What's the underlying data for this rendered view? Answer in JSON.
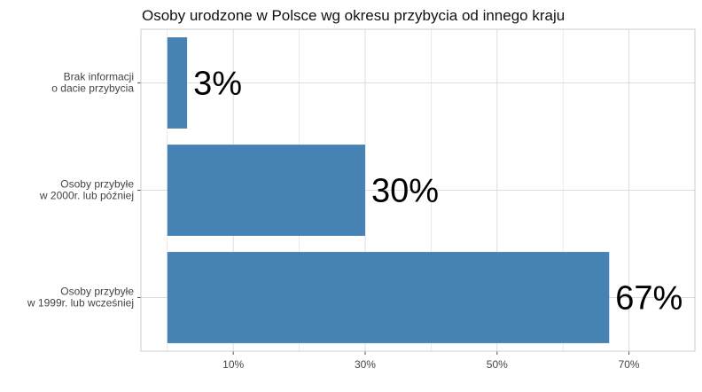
{
  "chart_data": {
    "type": "bar",
    "orientation": "horizontal",
    "title": "Osoby urodzone w Polsce wg okresu przybycia od innego kraju",
    "categories": [
      [
        "Brak informacji",
        "o dacie przybycia"
      ],
      [
        "Osoby przybyłe",
        "w 2000r. lub później"
      ],
      [
        "Osoby przybyłe",
        "w 1999r. lub wcześniej"
      ]
    ],
    "values": [
      3,
      30,
      67
    ],
    "data_labels": [
      "3%",
      "30%",
      "67%"
    ],
    "xlim": [
      -4,
      80
    ],
    "x_ticks": [
      10,
      30,
      50,
      70
    ],
    "x_tick_labels": [
      "10%",
      "30%",
      "50%",
      "70%"
    ],
    "x_minor_ticks": [
      0,
      20,
      40,
      60,
      80
    ],
    "xlabel": "",
    "ylabel": "",
    "grid": true,
    "legend": "none",
    "colors": {
      "bar": "#4682B4",
      "grid": "#DDDDDD",
      "panel_border": "#CCCCCC",
      "background": "#FFFFFF"
    }
  }
}
